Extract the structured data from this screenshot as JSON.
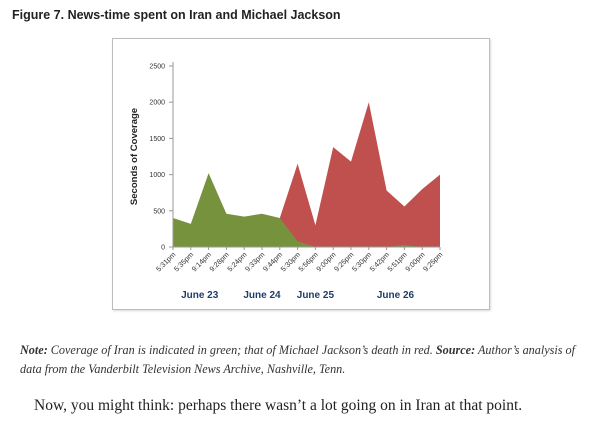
{
  "figure_title": "Figure 7. News-time spent on Iran and Michael Jackson",
  "note": {
    "note_label": "Note:",
    "note_text": " Coverage of Iran is indicated in green; that of Michael Jackson’s death in red. ",
    "source_label": "Source:",
    "source_text": " Author’s analysis of data from the Vanderbilt Television News Archive, Nashville, Tenn."
  },
  "body_text": "Now, you might think: perhaps there wasn’t a lot going on in Iran at that point.",
  "chart_data": {
    "type": "area",
    "title": "",
    "xlabel": "",
    "ylabel": "Seconds of Coverage",
    "ylim": [
      0,
      2500
    ],
    "yticks": [
      0,
      500,
      1000,
      1500,
      2000,
      2500
    ],
    "grid": false,
    "categories": [
      "5:31pm",
      "5:35pm",
      "9:14pm",
      "9:28pm",
      "5:24pm",
      "9:33pm",
      "9:44pm",
      "5:30pm",
      "5:56pm",
      "9:00pm",
      "9:25pm",
      "5:30pm",
      "5:42pm",
      "5:51pm",
      "9:00pm",
      "9:25pm"
    ],
    "date_groups": [
      {
        "label": "June 23",
        "start": 0,
        "end": 3
      },
      {
        "label": "June 24",
        "start": 4,
        "end": 6
      },
      {
        "label": "June 25",
        "start": 7,
        "end": 9
      },
      {
        "label": "June 26",
        "start": 10,
        "end": 15
      }
    ],
    "series": [
      {
        "color": "#c0504d",
        "values": [
          0,
          0,
          0,
          0,
          0,
          0,
          400,
          1150,
          300,
          1380,
          1180,
          2000,
          780,
          560,
          800,
          1000
        ]
      },
      {
        "color": "#76923c",
        "values": [
          400,
          320,
          1020,
          460,
          420,
          460,
          400,
          80,
          0,
          0,
          0,
          0,
          0,
          30,
          0,
          0
        ]
      }
    ]
  }
}
